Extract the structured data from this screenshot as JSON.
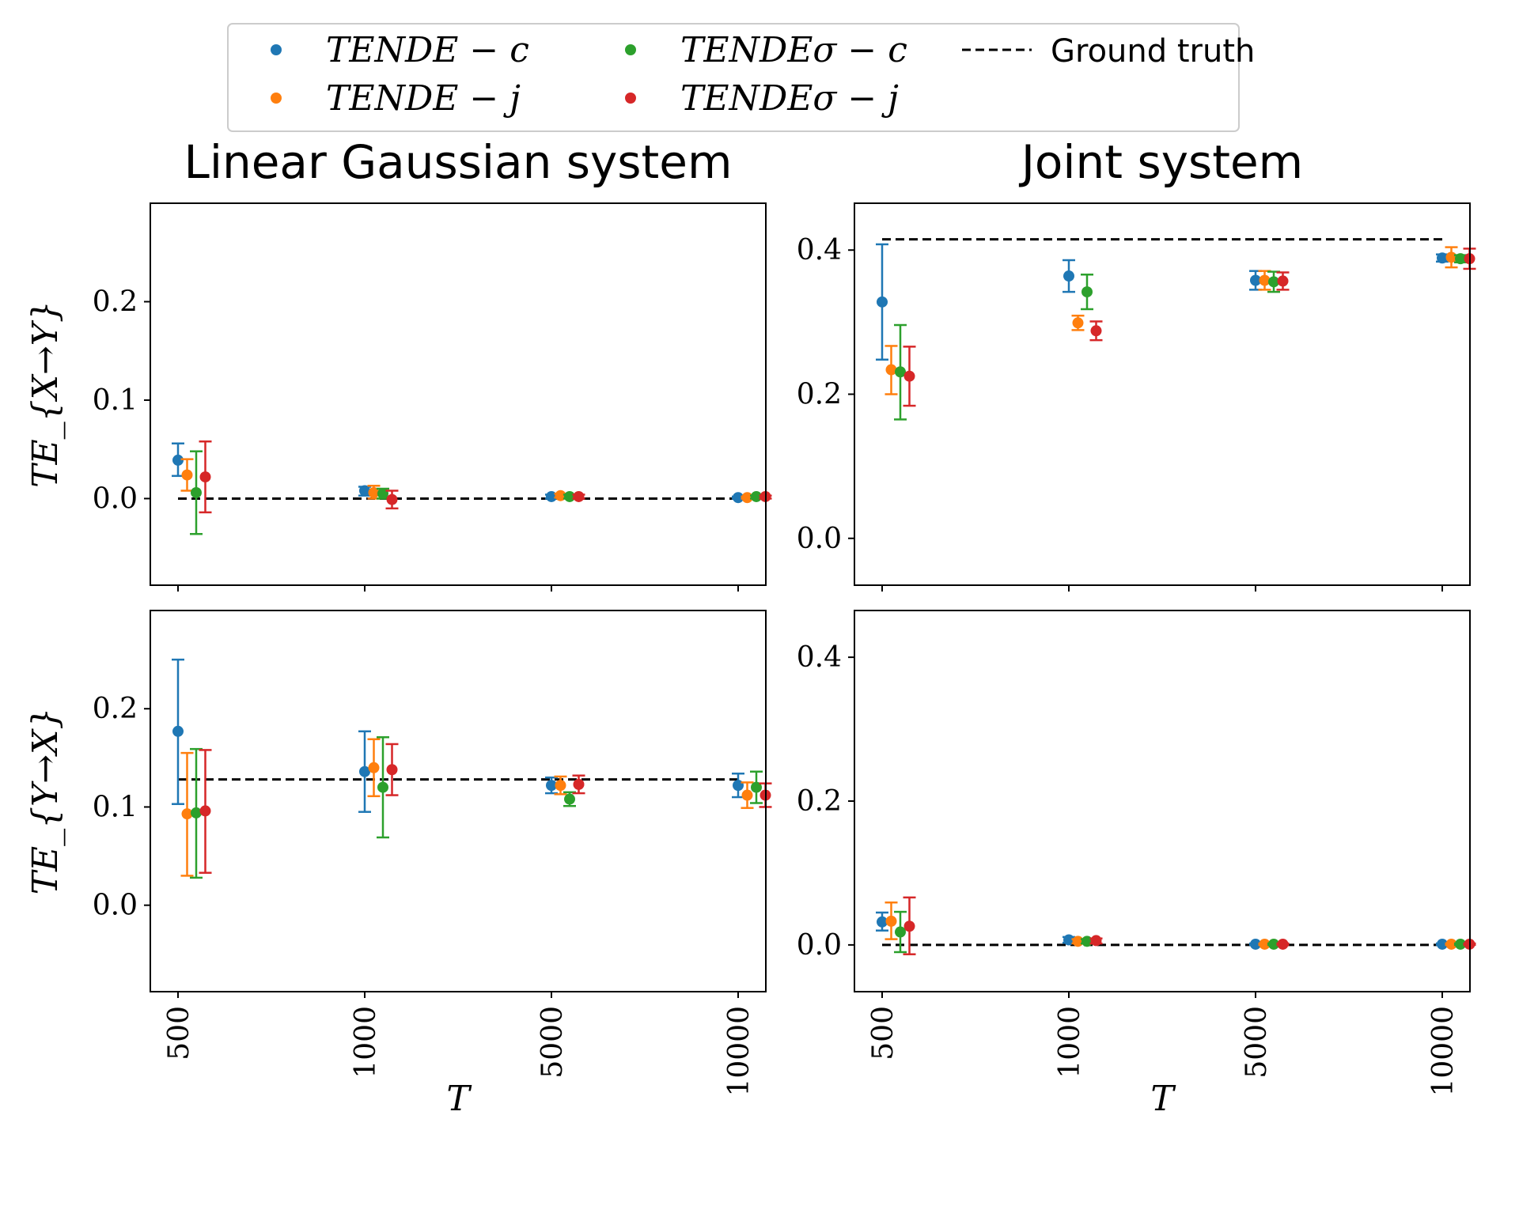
{
  "legend": {
    "entries": [
      {
        "label": "TENDE − c",
        "color": "#1f77b4",
        "kind": "marker"
      },
      {
        "label": "TENDE − j",
        "color": "#ff7f0e",
        "kind": "marker"
      },
      {
        "label": "TENDEσ − c",
        "color": "#2ca02c",
        "kind": "marker"
      },
      {
        "label": "TENDEσ − j",
        "color": "#d62728",
        "kind": "marker"
      },
      {
        "label": "Ground truth",
        "color": "#000000",
        "kind": "dashed-line"
      }
    ]
  },
  "chart_data": [
    {
      "id": "linear-xy",
      "type": "scatter",
      "title": "Linear Gaussian system",
      "xlabel": "",
      "ylabel": "TE_{X→Y}",
      "categories": [
        "500",
        "1000",
        "5000",
        "10000"
      ],
      "ylim": [
        -0.088,
        0.3
      ],
      "yticks": [
        0.0,
        0.1,
        0.2
      ],
      "ground_truth": 0.0,
      "series": [
        {
          "name": "TENDE − c",
          "values": [
            0.039,
            0.008,
            0.002,
            0.001
          ],
          "err_low": [
            0.023,
            0.003,
            0.0,
            0.0
          ],
          "err_high": [
            0.056,
            0.012,
            0.004,
            0.002
          ]
        },
        {
          "name": "TENDE − j",
          "values": [
            0.024,
            0.006,
            0.003,
            0.001
          ],
          "err_low": [
            0.008,
            0.0,
            0.001,
            0.0
          ],
          "err_high": [
            0.04,
            0.013,
            0.005,
            0.002
          ]
        },
        {
          "name": "TENDEσ − c",
          "values": [
            0.006,
            0.005,
            0.002,
            0.002
          ],
          "err_low": [
            -0.036,
            0.0,
            0.0,
            0.0
          ],
          "err_high": [
            0.048,
            0.01,
            0.004,
            0.003
          ]
        },
        {
          "name": "TENDEσ − j",
          "values": [
            0.022,
            -0.001,
            0.002,
            0.002
          ],
          "err_low": [
            -0.014,
            -0.01,
            0.0,
            0.0
          ],
          "err_high": [
            0.058,
            0.008,
            0.004,
            0.003
          ]
        }
      ]
    },
    {
      "id": "joint-xy",
      "type": "scatter",
      "title": "Joint system",
      "xlabel": "",
      "ylabel": "",
      "categories": [
        "500",
        "1000",
        "5000",
        "10000"
      ],
      "ylim": [
        -0.065,
        0.465
      ],
      "yticks": [
        0.0,
        0.2,
        0.4
      ],
      "ground_truth": 0.415,
      "series": [
        {
          "name": "TENDE − c",
          "values": [
            0.328,
            0.364,
            0.358,
            0.389
          ],
          "err_low": [
            0.248,
            0.342,
            0.345,
            0.384
          ],
          "err_high": [
            0.408,
            0.386,
            0.371,
            0.394
          ]
        },
        {
          "name": "TENDE − j",
          "values": [
            0.234,
            0.299,
            0.358,
            0.39
          ],
          "err_low": [
            0.2,
            0.289,
            0.345,
            0.376
          ],
          "err_high": [
            0.267,
            0.309,
            0.371,
            0.404
          ]
        },
        {
          "name": "TENDEσ − c",
          "values": [
            0.231,
            0.342,
            0.356,
            0.388
          ],
          "err_low": [
            0.165,
            0.318,
            0.342,
            0.383
          ],
          "err_high": [
            0.296,
            0.366,
            0.37,
            0.393
          ]
        },
        {
          "name": "TENDEσ − j",
          "values": [
            0.225,
            0.288,
            0.357,
            0.388
          ],
          "err_low": [
            0.184,
            0.275,
            0.345,
            0.374
          ],
          "err_high": [
            0.266,
            0.301,
            0.369,
            0.402
          ]
        }
      ]
    },
    {
      "id": "linear-yx",
      "type": "scatter",
      "title": "",
      "xlabel": "T",
      "ylabel": "TE_{Y→X}",
      "categories": [
        "500",
        "1000",
        "5000",
        "10000"
      ],
      "ylim": [
        -0.088,
        0.3
      ],
      "yticks": [
        0.0,
        0.1,
        0.2
      ],
      "ground_truth": 0.128,
      "series": [
        {
          "name": "TENDE − c",
          "values": [
            0.177,
            0.136,
            0.122,
            0.122
          ],
          "err_low": [
            0.103,
            0.095,
            0.114,
            0.11
          ],
          "err_high": [
            0.25,
            0.177,
            0.13,
            0.134
          ]
        },
        {
          "name": "TENDE − j",
          "values": [
            0.093,
            0.14,
            0.122,
            0.112
          ],
          "err_low": [
            0.03,
            0.111,
            0.113,
            0.099
          ],
          "err_high": [
            0.155,
            0.169,
            0.131,
            0.125
          ]
        },
        {
          "name": "TENDEσ − c",
          "values": [
            0.094,
            0.12,
            0.108,
            0.12
          ],
          "err_low": [
            0.028,
            0.069,
            0.101,
            0.104
          ],
          "err_high": [
            0.159,
            0.171,
            0.115,
            0.136
          ]
        },
        {
          "name": "TENDEσ − j",
          "values": [
            0.096,
            0.138,
            0.123,
            0.112
          ],
          "err_low": [
            0.033,
            0.112,
            0.114,
            0.1
          ],
          "err_high": [
            0.158,
            0.164,
            0.132,
            0.124
          ]
        }
      ]
    },
    {
      "id": "joint-yx",
      "type": "scatter",
      "title": "",
      "xlabel": "T",
      "ylabel": "",
      "categories": [
        "500",
        "1000",
        "5000",
        "10000"
      ],
      "ylim": [
        -0.065,
        0.465
      ],
      "yticks": [
        0.0,
        0.2,
        0.4
      ],
      "ground_truth": 0.0,
      "series": [
        {
          "name": "TENDE − c",
          "values": [
            0.032,
            0.007,
            0.001,
            0.001
          ],
          "err_low": [
            0.02,
            0.003,
            0.0,
            0.0
          ],
          "err_high": [
            0.045,
            0.011,
            0.002,
            0.002
          ]
        },
        {
          "name": "TENDE − j",
          "values": [
            0.033,
            0.005,
            0.001,
            0.001
          ],
          "err_low": [
            0.008,
            0.002,
            0.0,
            0.0
          ],
          "err_high": [
            0.059,
            0.008,
            0.002,
            0.002
          ]
        },
        {
          "name": "TENDEσ − c",
          "values": [
            0.018,
            0.005,
            0.001,
            0.001
          ],
          "err_low": [
            -0.01,
            0.002,
            0.0,
            0.0
          ],
          "err_high": [
            0.046,
            0.008,
            0.002,
            0.002
          ]
        },
        {
          "name": "TENDEσ − j",
          "values": [
            0.026,
            0.006,
            0.001,
            0.001
          ],
          "err_low": [
            -0.013,
            0.002,
            0.0,
            0.0
          ],
          "err_high": [
            0.066,
            0.009,
            0.002,
            0.002
          ]
        }
      ]
    }
  ]
}
